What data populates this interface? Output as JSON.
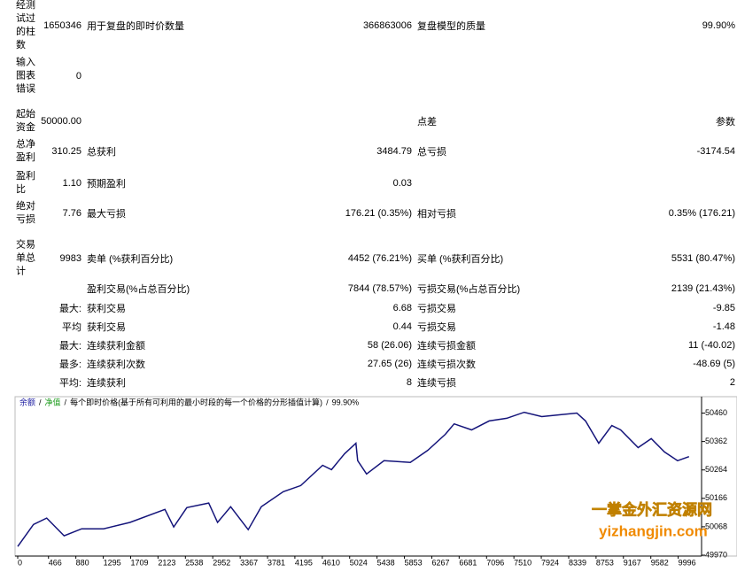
{
  "report": {
    "rows": [
      [
        "经测试过的柱数",
        "1650346",
        "用于复盘的即时价数量",
        "366863006",
        "复盘模型的质量",
        "99.90%"
      ],
      [
        "输入图表错误",
        "0",
        null,
        null,
        null,
        null
      ],
      [
        "起始资金",
        "50000.00",
        null,
        null,
        "点差",
        "参数"
      ],
      [
        "总净盈利",
        "310.25",
        "总获利",
        "3484.79",
        "总亏损",
        "-3174.54"
      ],
      [
        "盈利比",
        "1.10",
        "预期盈利",
        "0.03",
        null,
        null
      ],
      [
        "绝对亏损",
        "7.76",
        "最大亏损",
        "176.21 (0.35%)",
        "相对亏损",
        "0.35% (176.21)"
      ],
      [
        "交易单总计",
        "9983",
        "卖单 (%获利百分比)",
        "4452 (76.21%)",
        "买单 (%获利百分比)",
        "5531 (80.47%)"
      ],
      [
        null,
        null,
        "盈利交易(%占总百分比)",
        "7844 (78.57%)",
        "亏损交易(%占总百分比)",
        "2139 (21.43%)"
      ],
      [
        null,
        "最大:",
        "获利交易",
        "6.68",
        "亏损交易",
        "-9.85"
      ],
      [
        null,
        "平均",
        "获利交易",
        "0.44",
        "亏损交易",
        "-1.48"
      ],
      [
        null,
        "最大:",
        "连续获利金额",
        "58 (26.06)",
        "连续亏损金额",
        "11 (-40.02)"
      ],
      [
        null,
        "最多:",
        "连续获利次数",
        "27.65 (26)",
        "连续亏损次数",
        "-48.69 (5)"
      ],
      [
        null,
        "平均:",
        "连续获利",
        "8",
        "连续亏损",
        "2"
      ]
    ]
  },
  "chart": {
    "type": "line",
    "legend": [
      {
        "text": "余额",
        "color": "#1a1aa0"
      },
      {
        "text": "净值",
        "color": "#1a9a1a"
      },
      {
        "text": "每个即时价格(基于所有可利用的最小时段的每一个价格的分形插值计算)",
        "color": "#000000"
      },
      {
        "text": "99.90%",
        "color": "#000000"
      }
    ],
    "separator": "/",
    "color": "#14147a",
    "x": [
      0,
      239,
      438,
      703,
      968,
      1300,
      1698,
      2228,
      2361,
      2560,
      2891,
      3024,
      3223,
      3488,
      3687,
      4019,
      4284,
      4615,
      4748,
      4947,
      5119,
      5146,
      5279,
      5544,
      5942,
      6207,
      6472,
      6605,
      6870,
      7135,
      7401,
      7666,
      7931,
      8196,
      8462,
      8594,
      8793,
      8992,
      9125,
      9390,
      9589,
      9788,
      9987,
      10159
    ],
    "values": [
      50000,
      50076,
      50098,
      50037,
      50061,
      50061,
      50083,
      50128,
      50067,
      50134,
      50150,
      50083,
      50137,
      50058,
      50137,
      50189,
      50210,
      50280,
      50265,
      50320,
      50356,
      50296,
      50250,
      50296,
      50290,
      50332,
      50387,
      50423,
      50402,
      50433,
      50442,
      50463,
      50448,
      50454,
      50460,
      50433,
      50356,
      50417,
      50402,
      50341,
      50372,
      50326,
      50296,
      50310
    ],
    "xlim": [
      0,
      10350
    ],
    "ylim": [
      49970,
      50480
    ],
    "xticks": [
      0,
      466,
      880,
      1295,
      1709,
      2123,
      2538,
      2952,
      3367,
      3781,
      4195,
      4610,
      5024,
      5438,
      5853,
      6267,
      6681,
      7096,
      7510,
      7924,
      8339,
      8753,
      9167,
      9582,
      9996
    ],
    "yticks": [
      49970,
      50068,
      50166,
      50264,
      50362,
      50460
    ]
  },
  "watermark": {
    "line1": "一掌金外汇资源网",
    "line2": "yizhangjin.com"
  }
}
